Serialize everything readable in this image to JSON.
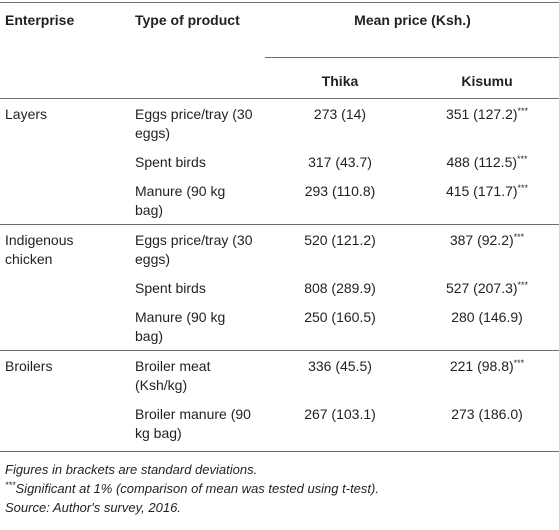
{
  "table": {
    "headers": [
      "Enterprise",
      "Type of product",
      "Mean price (Ksh.)"
    ],
    "subheaders": [
      "Thika",
      "Kisumu"
    ],
    "groups": [
      {
        "name": "Layers",
        "items": [
          {
            "product": "Eggs price/tray (30 eggs)",
            "thika": "273 (14)",
            "kisumu": "351 (127.2)",
            "sig": "***"
          },
          {
            "product": "Spent birds",
            "thika": "317 (43.7)",
            "kisumu": "488 (112.5)",
            "sig": "***"
          },
          {
            "product": "Manure (90 kg bag)",
            "thika": "293 (110.8)",
            "kisumu": "415 (171.7)",
            "sig": "***"
          }
        ]
      },
      {
        "name": "Indigenous chicken",
        "items": [
          {
            "product": "Eggs price/tray (30 eggs)",
            "thika": "520 (121.2)",
            "kisumu": "387 (92.2)",
            "sig": "***"
          },
          {
            "product": "Spent birds",
            "thika": "808 (289.9)",
            "kisumu": "527 (207.3)",
            "sig": "***"
          },
          {
            "product": "Manure (90 kg bag)",
            "thika": "250 (160.5)",
            "kisumu": "280 (146.9)"
          }
        ]
      },
      {
        "name": "Broilers",
        "items": [
          {
            "product": "Broiler meat (Ksh/kg)",
            "thika": "336 (45.5)",
            "kisumu": "221 (98.8)",
            "sig": "***"
          },
          {
            "product": "Broiler manure (90 kg bag)",
            "thika": "267 (103.1)",
            "kisumu": "273 (186.0)"
          }
        ]
      }
    ]
  },
  "notes": [
    {
      "text": "Figures in brackets are standard deviations."
    },
    {
      "sup": "***",
      "text": "Significant at 1% (comparison of mean was tested using t-test)."
    },
    {
      "text": "Source: Author's survey, 2016."
    }
  ]
}
